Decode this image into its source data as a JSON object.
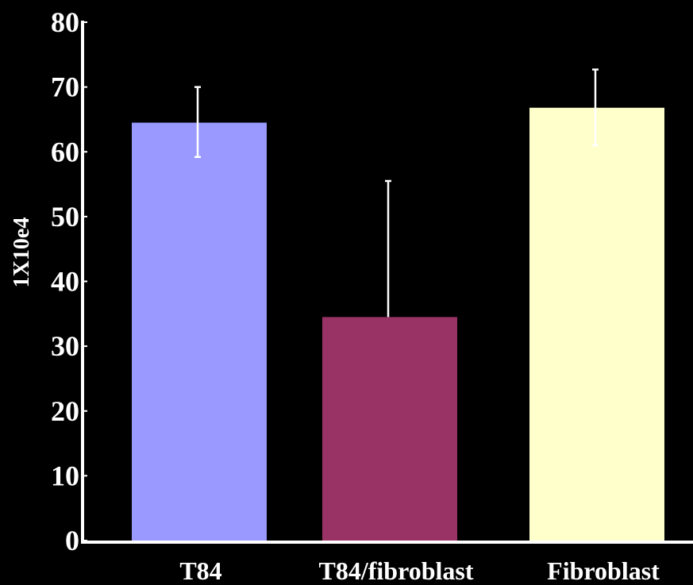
{
  "chart_data": {
    "type": "bar",
    "title": "",
    "xlabel": "",
    "ylabel": "1X10e4",
    "categories": [
      "T84",
      "T84/fibroblast",
      "Fibroblast"
    ],
    "values": [
      64.5,
      34.5,
      66.8
    ],
    "error_upper": [
      70,
      55.5,
      72.7
    ],
    "error_lower": [
      59.2,
      34.5,
      61
    ],
    "ylim": [
      0,
      80
    ],
    "yticks": [
      "0",
      "10",
      "20",
      "30",
      "40",
      "50",
      "60",
      "70",
      "80"
    ],
    "ytick_values": [
      0,
      10,
      20,
      30,
      40,
      50,
      60,
      70,
      80
    ],
    "grid": false,
    "legend": "none",
    "colors": {
      "background": "#000000",
      "axis": "#ffffff",
      "text": "#ffffff",
      "error_bar": "#ffffff",
      "bars": [
        "#9999ff",
        "#993366",
        "#ffffcc"
      ]
    }
  }
}
